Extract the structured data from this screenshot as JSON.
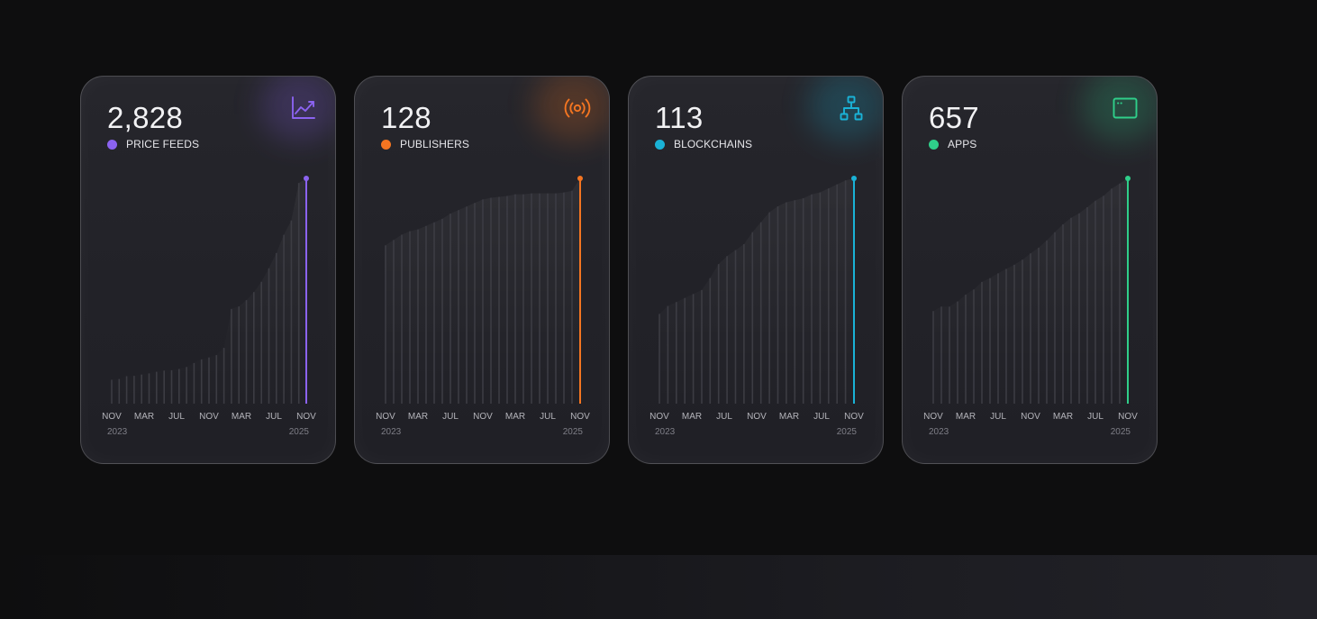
{
  "cards": [
    {
      "value": "2,828",
      "label": "PRICE FEEDS",
      "color": "#8b63f0",
      "icon": "trending-up-icon",
      "months": [
        "NOV",
        "MAR",
        "JUL",
        "NOV",
        "MAR",
        "JUL",
        "NOV"
      ],
      "year_start": "2023",
      "year_end": "2025"
    },
    {
      "value": "128",
      "label": "PUBLISHERS",
      "color": "#f47521",
      "icon": "broadcast-icon",
      "months": [
        "NOV",
        "MAR",
        "JUL",
        "NOV",
        "MAR",
        "JUL",
        "NOV"
      ],
      "year_start": "2023",
      "year_end": "2025"
    },
    {
      "value": "113",
      "label": "BLOCKCHAINS",
      "color": "#1ab2d6",
      "icon": "network-icon",
      "months": [
        "NOV",
        "MAR",
        "JUL",
        "NOV",
        "MAR",
        "JUL",
        "NOV"
      ],
      "year_start": "2023",
      "year_end": "2025"
    },
    {
      "value": "657",
      "label": "APPS",
      "color": "#2fcf8a",
      "icon": "app-window-icon",
      "months": [
        "NOV",
        "MAR",
        "JUL",
        "NOV",
        "MAR",
        "JUL",
        "NOV"
      ],
      "year_start": "2023",
      "year_end": "2025"
    }
  ],
  "chart_data": [
    {
      "type": "bar",
      "series": [
        {
          "name": "PRICE FEEDS",
          "values": [
            300,
            310,
            345,
            350,
            365,
            380,
            400,
            415,
            420,
            435,
            460,
            510,
            555,
            580,
            610,
            700,
            1190,
            1220,
            1300,
            1400,
            1530,
            1700,
            1890,
            2120,
            2300,
            2770,
            2828
          ]
        }
      ]
    },
    {
      "type": "bar",
      "series": [
        {
          "name": "PUBLISHERS",
          "values": [
            90,
            93,
            96,
            98,
            99,
            101,
            103,
            105,
            108,
            110,
            112,
            114,
            116,
            117,
            117.5,
            118,
            119,
            119,
            119.5,
            119.5,
            119.5,
            119.5,
            120,
            121,
            128
          ]
        }
      ]
    },
    {
      "type": "bar",
      "series": [
        {
          "name": "BLOCKCHAINS",
          "values": [
            45,
            49,
            51,
            53,
            55,
            57,
            63,
            70,
            74,
            77,
            80,
            86,
            91,
            96,
            99,
            101,
            102,
            103,
            105,
            106,
            108,
            110,
            112,
            113
          ]
        }
      ]
    },
    {
      "type": "bar",
      "series": [
        {
          "name": "APPS",
          "values": [
            270,
            283,
            283,
            298,
            318,
            333,
            355,
            366,
            380,
            393,
            405,
            420,
            438,
            455,
            476,
            500,
            523,
            542,
            555,
            573,
            592,
            606,
            627,
            642,
            657
          ]
        }
      ]
    }
  ]
}
